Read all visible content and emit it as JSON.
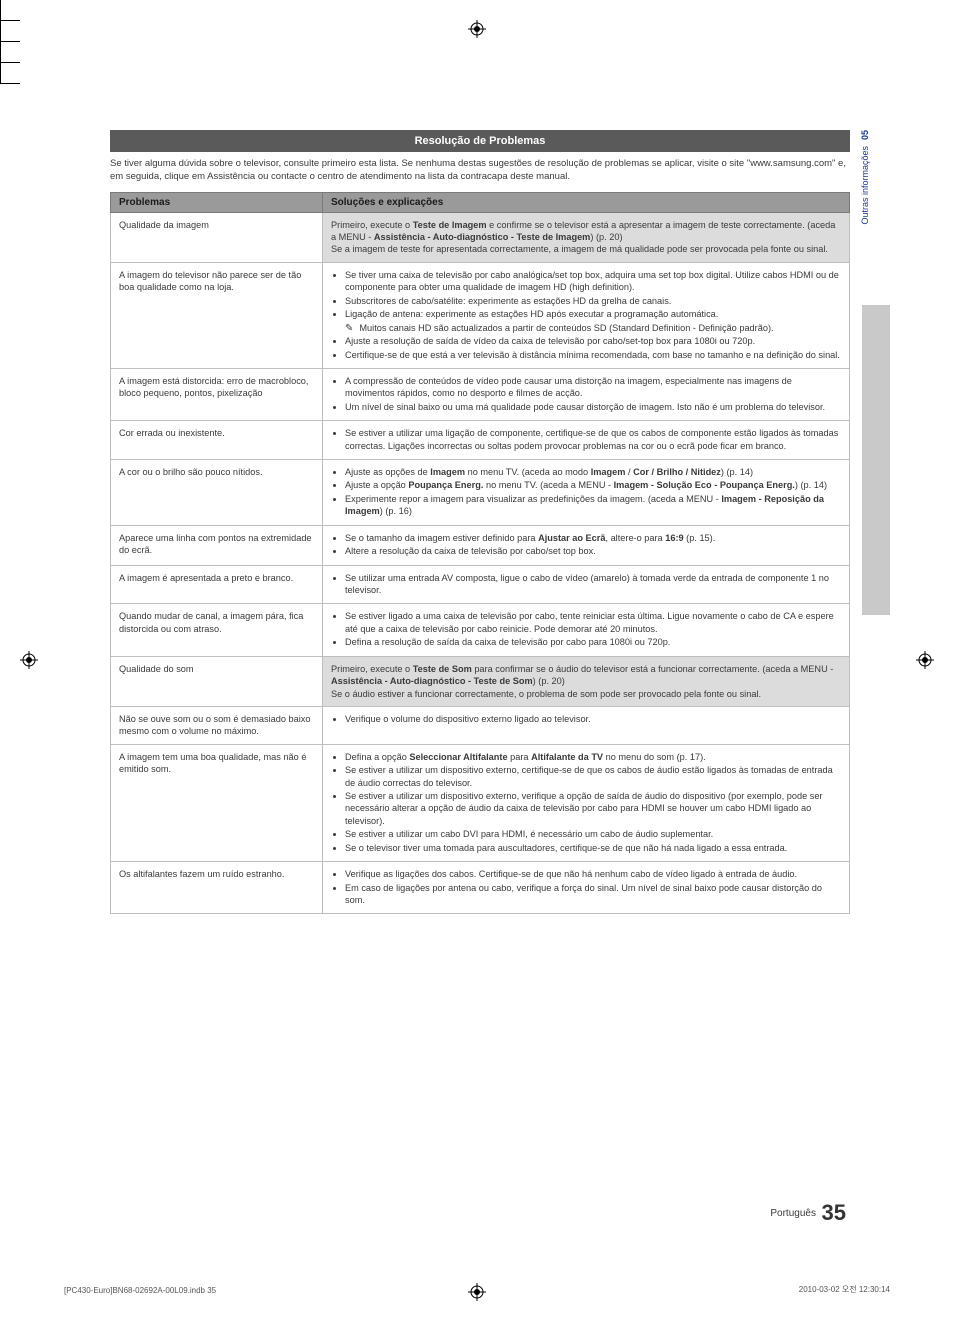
{
  "section_title": "Resolução de Problemas",
  "intro_text": "Se tiver alguma dúvida sobre o televisor, consulte primeiro esta lista. Se nenhuma destas sugestões de resolução de problemas se aplicar, visite o site \"www.samsung.com\" e, em seguida, clique em Assistência ou contacte o centro de atendimento na lista da contracapa deste manual.",
  "table": {
    "header_problems": "Problemas",
    "header_solutions": "Soluções e explicações",
    "rows": [
      {
        "category": true,
        "problem": "Qualidade da imagem",
        "solution_html": "Primeiro, execute o <b>Teste de Imagem</b> e confirme se o televisor está a apresentar a imagem de teste correctamente. (aceda a MENU - <b>Assistência - Auto-diagnóstico - Teste de Imagem</b>) (p. 20)<br>Se a imagem de teste for apresentada correctamente, a imagem de má qualidade pode ser provocada pela fonte ou sinal."
      },
      {
        "problem": "A imagem do televisor não parece ser de tão boa qualidade como na loja.",
        "bullets": [
          "Se tiver uma caixa de televisão por cabo analógica/set top box, adquira uma set top box digital. Utilize cabos HDMI ou de componente para obter uma qualidade de imagem HD (high definition).",
          "Subscritores de cabo/satélite: experimente as estações HD da grelha de canais.",
          "Ligação de antena: experimente as estações HD após executar a programação automática."
        ],
        "note": "Muitos canais HD são actualizados a partir de conteúdos SD (Standard Definition - Definição padrão).",
        "bullets2": [
          "Ajuste a resolução de saída de vídeo da caixa de televisão por cabo/set-top box para 1080i ou 720p.",
          "Certifique-se de que está a ver televisão à distância mínima recomendada, com base no tamanho e na definição do sinal."
        ]
      },
      {
        "problem": "A imagem está distorcida: erro de macrobloco, bloco pequeno, pontos, pixelização",
        "bullets": [
          "A compressão de conteúdos de vídeo pode causar uma distorção na imagem, especialmente nas imagens de movimentos rápidos, como no desporto e filmes de acção.",
          "Um nível de sinal baixo ou uma má qualidade pode causar distorção de imagem. Isto não é um problema do televisor."
        ]
      },
      {
        "problem": "Cor errada ou inexistente.",
        "bullets": [
          "Se estiver a utilizar uma ligação de componente, certifique-se de que os cabos de componente estão ligados às tomadas correctas. Ligações incorrectas ou soltas podem provocar problemas na cor ou o ecrã pode ficar em branco."
        ]
      },
      {
        "problem": "A cor ou o brilho são pouco nítidos.",
        "bullets_html": [
          "Ajuste as opções de <b>Imagem</b> no menu TV. (aceda ao modo <b>Imagem</b> / <b>Cor / Brilho / Nitidez</b>) (p. 14)",
          "Ajuste a opção <b>Poupança Energ.</b> no menu TV. (aceda a MENU - <b>Imagem - Solução Eco - Poupança Energ.</b>) (p. 14)",
          "Experimente repor a imagem para visualizar as predefinições da imagem. (aceda a MENU - <b>Imagem - Reposição da Imagem</b>) (p. 16)"
        ]
      },
      {
        "problem": "Aparece uma linha com pontos na extremidade do ecrã.",
        "bullets_html": [
          "Se o tamanho da imagem estiver definido para <b>Ajustar ao Ecrã</b>, altere-o para <b>16:9</b> (p. 15).",
          "Altere a resolução da caixa de televisão por cabo/set top box."
        ]
      },
      {
        "problem": "A imagem é apresentada a preto e branco.",
        "bullets": [
          "Se utilizar uma entrada AV composta, ligue o cabo de vídeo (amarelo) à tomada verde da entrada de componente 1 no televisor."
        ]
      },
      {
        "problem": "Quando mudar de canal, a imagem pára, fica distorcida ou com atraso.",
        "bullets": [
          "Se estiver ligado a uma caixa de televisão por cabo, tente reiniciar esta última. Ligue novamente o cabo de CA e espere até que a caixa de televisão por cabo reinicie. Pode demorar até 20 minutos.",
          "Defina a resolução de saída da caixa de televisão por cabo para 1080i ou 720p."
        ]
      },
      {
        "category": true,
        "problem": "Qualidade do som",
        "solution_html": "Primeiro, execute o <b>Teste de Som</b> para confirmar se o áudio do televisor está a funcionar correctamente. (aceda a MENU - <b>Assistência - Auto-diagnóstico - Teste de Som</b>) (p. 20)<br>Se o áudio estiver a funcionar correctamente, o problema de som pode ser provocado pela fonte ou sinal."
      },
      {
        "problem": "Não se ouve som ou o som é demasiado baixo mesmo com o volume no máximo.",
        "bullets": [
          "Verifique o volume do dispositivo externo ligado ao televisor."
        ]
      },
      {
        "problem": "A imagem tem uma boa qualidade, mas não é emitido som.",
        "bullets_html": [
          "Defina a opção <b>Seleccionar Altifalante</b> para <b>Altifalante da TV</b> no menu do som (p. 17).",
          "Se estiver a utilizar um dispositivo externo, certifique-se de que os cabos de áudio estão ligados às tomadas de entrada de áudio correctas do televisor.",
          "Se estiver a utilizar um dispositivo externo, verifique a opção de saída de áudio do dispositivo (por exemplo, pode ser necessário alterar a opção de áudio da caixa de televisão por cabo para HDMI se houver um cabo HDMI ligado ao televisor).",
          "Se estiver a utilizar um cabo DVI para HDMI, é necessário um cabo de áudio suplementar.",
          "Se o televisor tiver uma tomada para auscultadores, certifique-se de que não há nada ligado a essa entrada."
        ]
      },
      {
        "problem": "Os altifalantes fazem um ruído estranho.",
        "bullets": [
          "Verifique as ligações dos cabos. Certifique-se de que não há nenhum cabo de vídeo ligado à entrada de áudio.",
          "Em caso de ligações por antena ou cabo, verifique a força do sinal. Um nível de sinal baixo pode causar distorção do som."
        ]
      }
    ]
  },
  "side_tab": {
    "chapter_num": "05",
    "chapter_label": "Outras informações"
  },
  "footer": {
    "language": "Português",
    "page_number": "35"
  },
  "print_footer": {
    "left": "[PC430-Euro]BN68-02692A-00L09.indb   35",
    "right": "2010-03-02   오전 12:30:14"
  },
  "colors": {
    "section_title_bg": "#5a5a5a",
    "header_bg": "#9a9a9a",
    "category_bg": "#dcdcdc",
    "border": "#bdbdbd",
    "text": "#3a3a3a",
    "sidetab_text": "#1a3a8f",
    "sidebar_bg": "#c9c9c9"
  }
}
